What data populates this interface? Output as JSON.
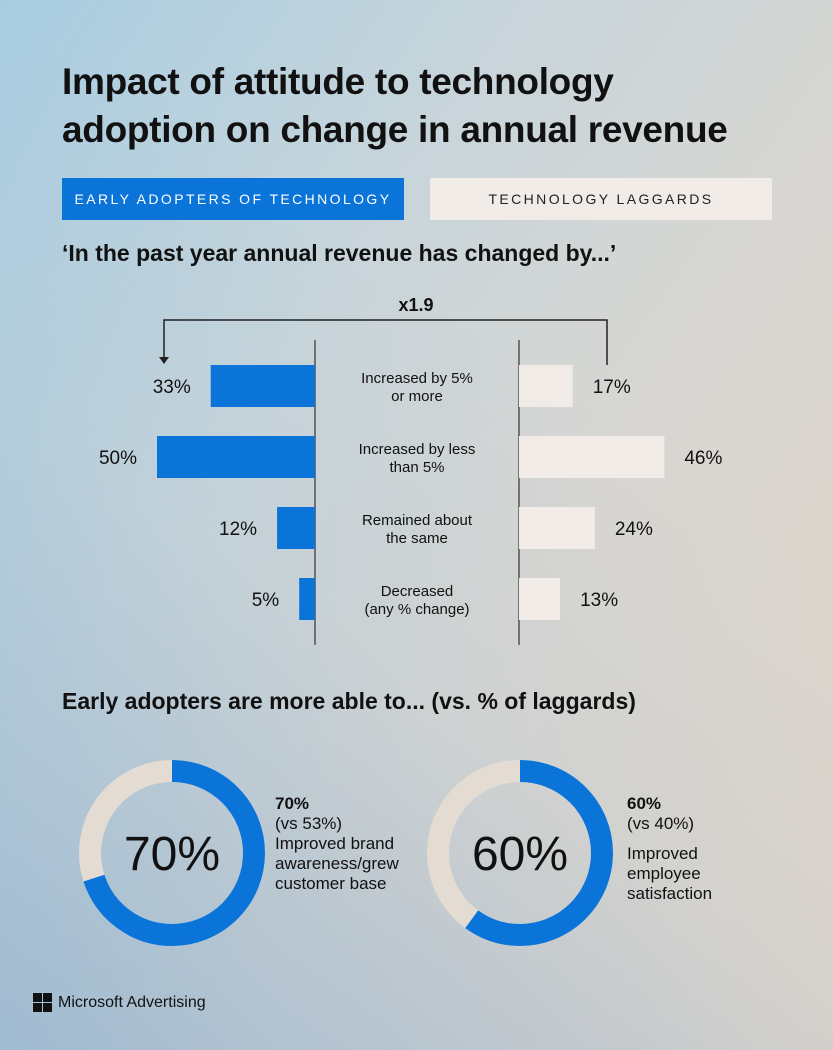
{
  "title_lines": [
    "Impact of attitude to technology",
    "adoption on change in annual revenue"
  ],
  "legend": {
    "early": "EARLY ADOPTERS OF TECHNOLOGY",
    "laggards": "TECHNOLOGY LAGGARDS"
  },
  "colors": {
    "early": "#0a74d8",
    "laggards": "#f1ece7",
    "ring_bg": "#e4dcd3"
  },
  "question": "‘In the past year annual revenue has changed by...’",
  "multiplier_label": "x1.9",
  "chart_data": [
    {
      "type": "bar",
      "orientation": "horizontal-diverging",
      "categories": [
        [
          "Increased by 5%",
          "or more"
        ],
        [
          "Increased by less",
          "than 5%"
        ],
        [
          "Remained about",
          "the same"
        ],
        [
          "Decreased",
          "(any % change)"
        ]
      ],
      "series": [
        {
          "name": "EARLY ADOPTERS OF TECHNOLOGY",
          "values": [
            33,
            50,
            12,
            5
          ],
          "labels": [
            "33%",
            "50%",
            "12%",
            "5%"
          ]
        },
        {
          "name": "TECHNOLOGY LAGGARDS",
          "values": [
            17,
            46,
            24,
            13
          ],
          "labels": [
            "17%",
            "46%",
            "24%",
            "13%"
          ]
        }
      ],
      "annotation": "x1.9"
    },
    {
      "type": "pie",
      "variant": "donut",
      "items": [
        {
          "value": 70,
          "center_label": "70%",
          "headline": "70%",
          "comparison": "(vs 53%)",
          "description": [
            "Improved brand",
            "awareness/grew",
            "customer base"
          ]
        },
        {
          "value": 60,
          "center_label": "60%",
          "headline": "60%",
          "comparison": "(vs 40%)",
          "description": [
            "Improved",
            "employee",
            "satisfaction"
          ]
        }
      ]
    }
  ],
  "subheading": "Early adopters are more able to... (vs. % of laggards)",
  "brand": "Microsoft Advertising"
}
